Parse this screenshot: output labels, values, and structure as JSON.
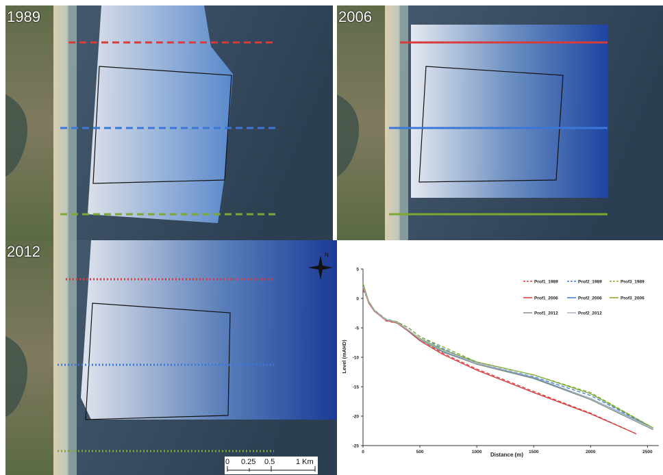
{
  "panels": {
    "p1989": {
      "label": "1989"
    },
    "p2006": {
      "label": "2006"
    },
    "p2012": {
      "label": "2012"
    }
  },
  "north_arrow": {
    "label": "N"
  },
  "scalebar": {
    "ticks": [
      "0",
      "0.25",
      "0.5",
      "1 Km"
    ]
  },
  "colors": {
    "prof1": "#d93a3a",
    "prof2": "#3a78d8",
    "prof3": "#7ea832",
    "prof1_2012": "#7e8e86",
    "prof2_2012": "#a5b3c2"
  },
  "chart_data": {
    "type": "line",
    "title": "",
    "xlabel": "Distance (m)",
    "ylabel": "Level (mAHD)",
    "xlim": [
      0,
      2600
    ],
    "ylim": [
      -25,
      5
    ],
    "xticks": [
      "0",
      "500",
      "1000",
      "1500",
      "2000",
      "2500"
    ],
    "yticks": [
      "5",
      "0",
      "-5",
      "-10",
      "-15",
      "-20",
      "-25"
    ],
    "grid": false,
    "legend": "top-right",
    "series": [
      {
        "name": "Prof1_1989",
        "color": "#d93a3a",
        "dash": "dashed",
        "x": [
          0,
          50,
          100,
          200,
          300,
          400,
          500,
          700,
          1000,
          1500,
          2000,
          2400
        ],
        "y": [
          1.5,
          -0.5,
          -2,
          -3.8,
          -4.2,
          -5.5,
          -7,
          -9.3,
          -12,
          -15.8,
          -19.5,
          -23
        ]
      },
      {
        "name": "Prof2_1989",
        "color": "#3a78d8",
        "dash": "dashed",
        "x": [
          0,
          50,
          100,
          200,
          300,
          400,
          500,
          700,
          1000,
          1500,
          2000,
          2550
        ],
        "y": [
          2,
          -0.5,
          -2,
          -3.5,
          -4,
          -5,
          -6.5,
          -8.5,
          -11,
          -13.3,
          -16.5,
          -22
        ]
      },
      {
        "name": "Prof3_1989",
        "color": "#7ea832",
        "dash": "dashed",
        "x": [
          0,
          50,
          100,
          200,
          300,
          400,
          500,
          700,
          1000,
          1500,
          2000,
          2550
        ],
        "y": [
          2,
          -0.5,
          -2,
          -3.5,
          -4,
          -5,
          -6.5,
          -8.2,
          -10.8,
          -13,
          -16,
          -22
        ]
      },
      {
        "name": "Prof1_2006",
        "color": "#d93a3a",
        "dash": "solid",
        "x": [
          0,
          50,
          100,
          200,
          300,
          400,
          500,
          700,
          1000,
          1500,
          2000,
          2400
        ],
        "y": [
          2,
          -0.8,
          -2.2,
          -3.7,
          -4.2,
          -5.6,
          -7.2,
          -9.5,
          -12.2,
          -16,
          -19.6,
          -23
        ]
      },
      {
        "name": "Prof2_2006",
        "color": "#3a78d8",
        "dash": "solid",
        "x": [
          0,
          50,
          100,
          200,
          300,
          400,
          500,
          700,
          1000,
          1500,
          2000,
          2550
        ],
        "y": [
          2.5,
          -0.5,
          -2,
          -3.6,
          -4,
          -5.5,
          -7,
          -9,
          -11,
          -13.5,
          -17,
          -22
        ]
      },
      {
        "name": "Prof3_2006",
        "color": "#7ea832",
        "dash": "solid",
        "x": [
          0,
          50,
          100,
          200,
          300,
          400,
          500,
          700,
          1000,
          1500,
          2000,
          2550
        ],
        "y": [
          2.5,
          -0.5,
          -2,
          -3.6,
          -4,
          -5.4,
          -6.8,
          -8.7,
          -10.8,
          -13,
          -16.2,
          -22
        ]
      },
      {
        "name": "Prof1_2012",
        "color": "#7e8e86",
        "dash": "solid",
        "x": [
          0,
          50,
          100,
          200,
          300,
          400,
          500,
          700,
          1000,
          1500,
          2000,
          2550
        ],
        "y": [
          2,
          -0.6,
          -2.1,
          -3.6,
          -4.1,
          -5.5,
          -7,
          -9.1,
          -11.2,
          -13.6,
          -17.2,
          -22.3
        ]
      },
      {
        "name": "Prof2_2012",
        "color": "#a5b3c2",
        "dash": "solid",
        "x": [
          0,
          50,
          100,
          200,
          300,
          400,
          500,
          700,
          1000,
          1500,
          2000,
          2550
        ],
        "y": [
          2,
          -0.6,
          -2.1,
          -3.6,
          -4.1,
          -5.4,
          -6.9,
          -8.9,
          -11,
          -13.4,
          -17,
          -22.1
        ]
      }
    ]
  }
}
